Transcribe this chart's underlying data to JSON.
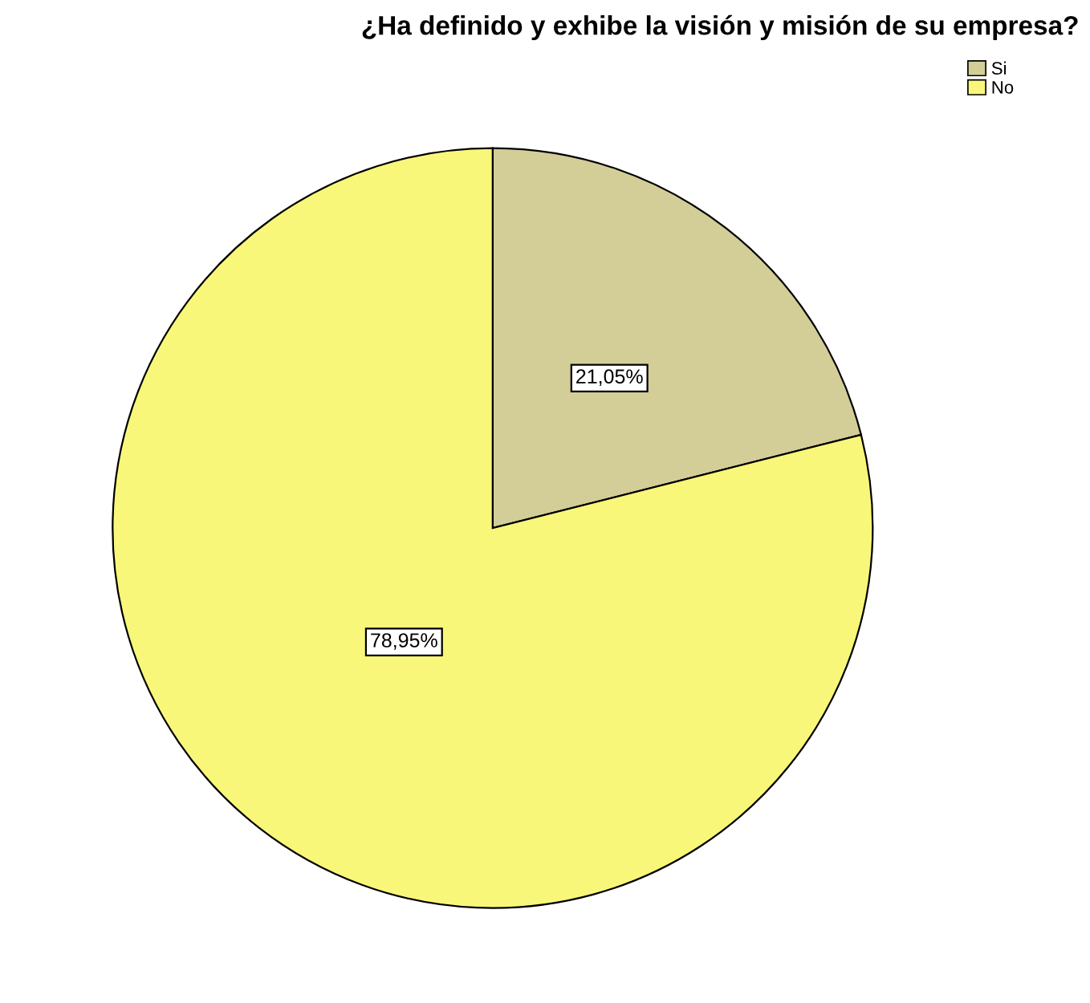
{
  "chart_data": {
    "type": "pie",
    "title": "¿Ha definido y exhibe la visión y misión de su empresa?",
    "categories": [
      "Si",
      "No"
    ],
    "values": [
      21.05,
      78.95
    ],
    "colors": [
      "#d3ce98",
      "#f9f77a"
    ],
    "value_labels": [
      "21,05%",
      "78,95%"
    ],
    "legend": "top right"
  }
}
